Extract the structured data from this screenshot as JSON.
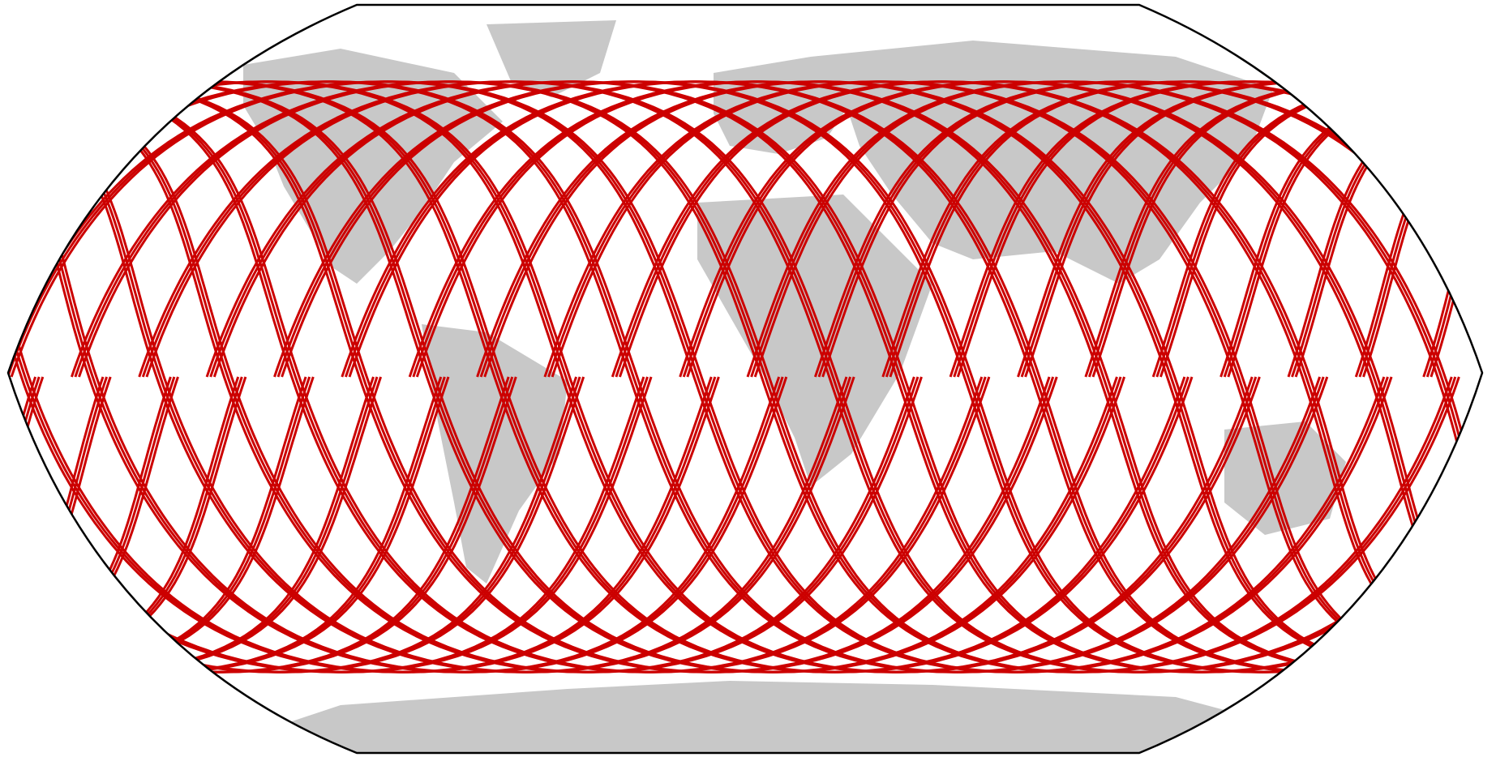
{
  "map": {
    "projection": "robinson",
    "land_color": "#c8c8c8",
    "ocean_color": "#ffffff",
    "border_color": "#000000",
    "track_color": "#cc0000"
  },
  "ground_tracks": {
    "inclination_deg": 66,
    "passes": 22,
    "node_spacing_deg": 16.4,
    "repeats_per_pass": 3
  }
}
